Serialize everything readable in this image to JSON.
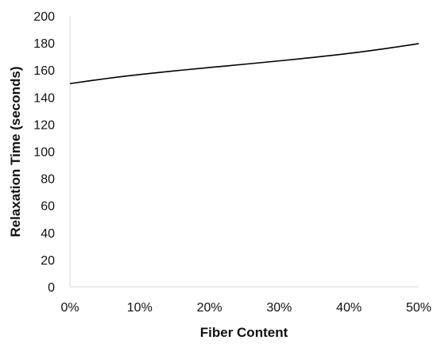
{
  "chart_data": {
    "type": "line",
    "title": "",
    "xlabel": "Fiber Content",
    "ylabel": "Relaxation Time (seconds)",
    "x": [
      0,
      0.05,
      0.1,
      0.15,
      0.2,
      0.25,
      0.3,
      0.35,
      0.4,
      0.45,
      0.5
    ],
    "x_tick_values": [
      0,
      0.1,
      0.2,
      0.3,
      0.4,
      0.5
    ],
    "x_tick_labels": [
      "0%",
      "10%",
      "20%",
      "30%",
      "40%",
      "50%"
    ],
    "xlim": [
      0,
      0.5
    ],
    "y_tick_values": [
      0,
      20,
      40,
      60,
      80,
      100,
      120,
      140,
      160,
      180,
      200
    ],
    "y_tick_labels": [
      "0",
      "20",
      "40",
      "60",
      "80",
      "100",
      "120",
      "140",
      "160",
      "180",
      "200"
    ],
    "ylim": [
      0,
      200
    ],
    "grid": false,
    "series": [
      {
        "values": [
          150,
          153.6,
          156.7,
          159.4,
          161.9,
          164.3,
          166.8,
          169.4,
          172.3,
          175.7,
          179.5
        ]
      }
    ],
    "line_color": "#000000",
    "axis_color": "#d9d9d9"
  }
}
